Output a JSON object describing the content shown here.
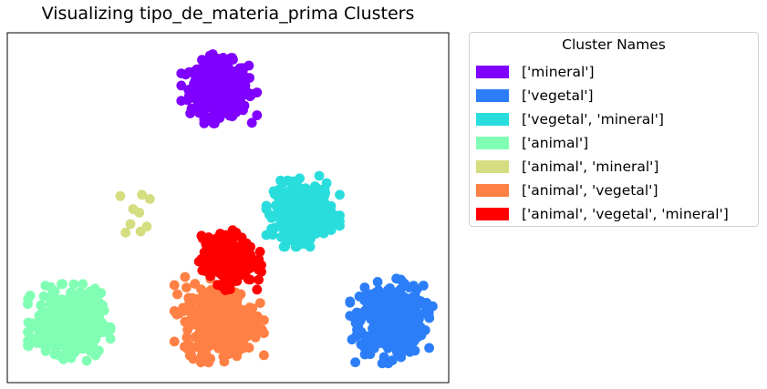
{
  "chart_data": {
    "type": "scatter",
    "title": "Visualizing tipo_de_materia_prima Clusters",
    "xlabel": "",
    "ylabel": "",
    "xlim": [
      0,
      100
    ],
    "ylim": [
      0,
      100
    ],
    "grid": false,
    "legend": {
      "title": "Cluster Names",
      "placement": "outside-right"
    },
    "series": [
      {
        "name": "['mineral']",
        "color": "#8000ff",
        "center": [
          48,
          84
        ],
        "spread": [
          3.3,
          3.8
        ],
        "count": 420
      },
      {
        "name": "['vegetal']",
        "color": "#2c7ef8",
        "center": [
          87,
          18
        ],
        "spread": [
          3.6,
          4.8
        ],
        "count": 450
      },
      {
        "name": "['vegetal', 'mineral']",
        "color": "#2adddd",
        "center": [
          67,
          49
        ],
        "spread": [
          3.2,
          3.9
        ],
        "count": 380
      },
      {
        "name": "['animal']",
        "color": "#80ffb4",
        "center": [
          14,
          17
        ],
        "spread": [
          3.6,
          4.3
        ],
        "count": 420
      },
      {
        "name": "['animal', 'mineral']",
        "color": "#d4dd80",
        "center": [
          29,
          47
        ],
        "spread": [
          1.5,
          2.8
        ],
        "count": 9,
        "points": [
          [
            25.6,
            53.3
          ],
          [
            30.5,
            53.7
          ],
          [
            32.3,
            52.5
          ],
          [
            28.5,
            49.6
          ],
          [
            29.9,
            48.6
          ],
          [
            27.9,
            45.3
          ],
          [
            31.6,
            44.6
          ],
          [
            30.2,
            43.2
          ],
          [
            26.8,
            42.9
          ]
        ]
      },
      {
        "name": "['animal', 'vegetal']",
        "color": "#ff8044",
        "center": [
          48,
          18
        ],
        "spread": [
          3.9,
          4.7
        ],
        "count": 450
      },
      {
        "name": "['animal', 'vegetal', 'mineral']",
        "color": "#ff0000",
        "center": [
          50,
          35
        ],
        "spread": [
          2.9,
          3.3
        ],
        "count": 280
      }
    ]
  }
}
